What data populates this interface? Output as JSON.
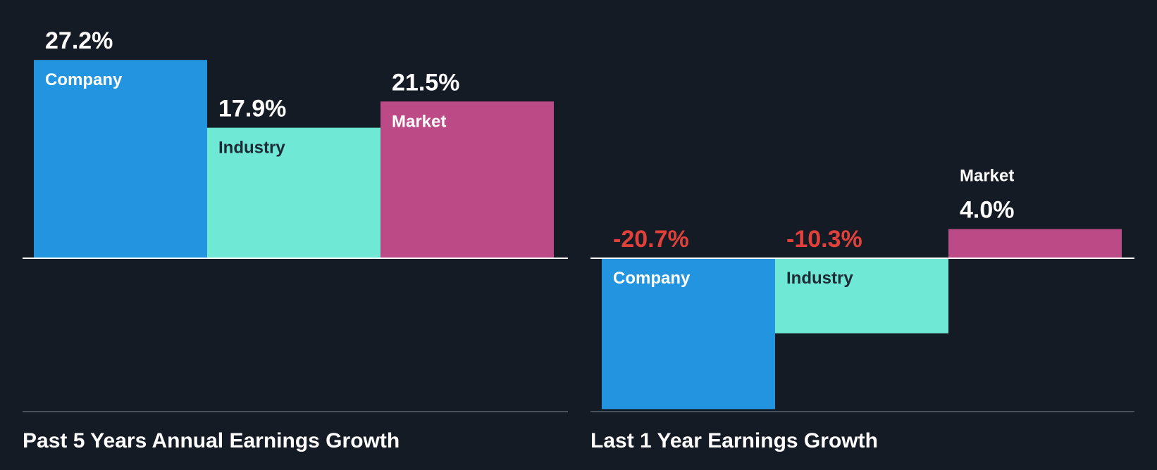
{
  "colors": {
    "background": "#151b24",
    "company": "#2394e0",
    "industry": "#6fe8d6",
    "market": "#bb4a86",
    "positive_text": "#ffffff",
    "negative_text": "#e0413b",
    "label_on_dark": "#ffffff",
    "label_on_light": "#1e2a36",
    "zero_line": "#ffffff",
    "base_line": "#4b525c"
  },
  "chart_data": [
    {
      "type": "bar",
      "title": "Past 5 Years Annual Earnings Growth",
      "categories": [
        "Company",
        "Industry",
        "Market"
      ],
      "values": [
        27.2,
        17.9,
        21.5
      ],
      "value_labels": [
        "27.2%",
        "17.9%",
        "21.5%"
      ],
      "units": "%",
      "ylim": [
        -21,
        28
      ]
    },
    {
      "type": "bar",
      "title": "Last 1 Year Earnings Growth",
      "categories": [
        "Company",
        "Industry",
        "Market"
      ],
      "values": [
        -20.7,
        -10.3,
        4.0
      ],
      "value_labels": [
        "-20.7%",
        "-10.3%",
        "4.0%"
      ],
      "units": "%",
      "ylim": [
        -21,
        28
      ]
    }
  ]
}
